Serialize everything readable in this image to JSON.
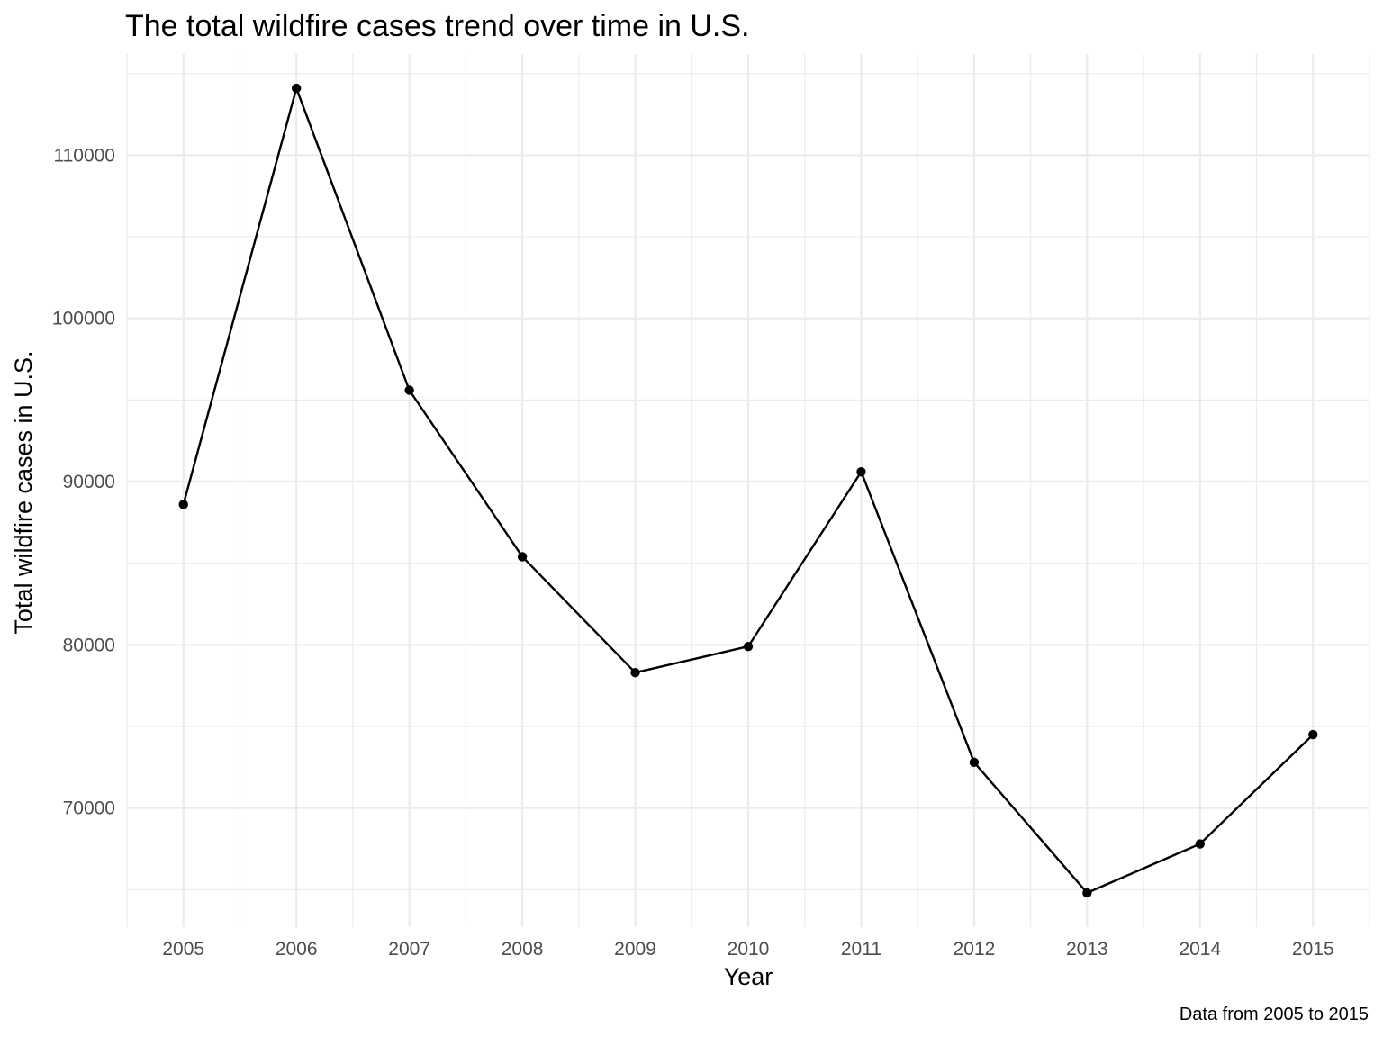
{
  "chart_data": {
    "type": "line",
    "title": "The total wildfire cases trend over time in U.S.",
    "xlabel": "Year",
    "ylabel": "Total wildfire cases in U.S.",
    "caption": "Data from 2005 to 2015",
    "x": [
      2005,
      2006,
      2007,
      2008,
      2009,
      2010,
      2011,
      2012,
      2013,
      2014,
      2015
    ],
    "values": [
      88600,
      114100,
      95600,
      85400,
      78300,
      79900,
      90600,
      72800,
      64800,
      67800,
      74500
    ],
    "x_ticks": [
      "2005",
      "2006",
      "2007",
      "2008",
      "2009",
      "2010",
      "2011",
      "2012",
      "2013",
      "2014",
      "2015"
    ],
    "y_ticks": [
      "70000",
      "80000",
      "90000",
      "100000",
      "110000"
    ],
    "y_tick_values": [
      70000,
      80000,
      90000,
      100000,
      110000
    ],
    "xlim": [
      2004.5,
      2015.5
    ],
    "ylim": [
      62700,
      116200
    ],
    "grid": true,
    "legend": "none",
    "colors": {
      "line": "#000000",
      "grid": "#ebebeb",
      "background": "#ffffff"
    }
  }
}
